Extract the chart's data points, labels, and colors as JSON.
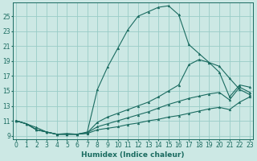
{
  "xlabel": "Humidex (Indice chaleur)",
  "bg_color": "#cce8e4",
  "grid_color": "#99ccc7",
  "line_color": "#1a6b60",
  "x_ticks": [
    0,
    1,
    2,
    3,
    4,
    5,
    6,
    7,
    8,
    9,
    10,
    11,
    12,
    13,
    14,
    15,
    16,
    17,
    18,
    19,
    20,
    21,
    22,
    23
  ],
  "y_ticks": [
    9,
    11,
    13,
    15,
    17,
    19,
    21,
    23,
    25
  ],
  "xlim": [
    -0.3,
    23.3
  ],
  "ylim": [
    8.5,
    26.8
  ],
  "tick_fontsize": 5.5,
  "series": {
    "main": {
      "x": [
        0,
        1,
        2,
        3,
        4,
        5,
        6,
        7,
        8,
        9,
        10,
        11,
        12,
        13,
        14,
        15,
        16,
        17,
        18,
        19,
        20,
        21,
        22,
        23
      ],
      "y": [
        11.0,
        10.6,
        10.1,
        9.5,
        9.2,
        9.3,
        9.2,
        9.5,
        15.2,
        18.2,
        20.7,
        23.2,
        25.0,
        25.6,
        26.2,
        26.4,
        25.2,
        21.2,
        20.0,
        18.8,
        18.3,
        16.7,
        15.2,
        14.5
      ]
    },
    "line2": {
      "x": [
        0,
        1,
        2,
        3,
        4,
        5,
        6,
        7,
        8,
        9,
        10,
        11,
        12,
        13,
        14,
        15,
        16,
        17,
        18,
        19,
        20,
        21,
        22,
        23
      ],
      "y": [
        11.0,
        10.6,
        9.8,
        9.5,
        9.2,
        9.2,
        9.2,
        9.4,
        10.8,
        11.5,
        12.0,
        12.5,
        13.0,
        13.5,
        14.2,
        15.0,
        15.8,
        18.5,
        19.2,
        18.8,
        17.5,
        14.2,
        15.8,
        15.5
      ]
    },
    "line3": {
      "x": [
        0,
        1,
        2,
        3,
        4,
        5,
        6,
        7,
        8,
        9,
        10,
        11,
        12,
        13,
        14,
        15,
        16,
        17,
        18,
        19,
        20,
        21,
        22,
        23
      ],
      "y": [
        11.0,
        10.6,
        9.8,
        9.5,
        9.2,
        9.2,
        9.2,
        9.4,
        10.2,
        10.6,
        11.0,
        11.4,
        11.8,
        12.2,
        12.7,
        13.2,
        13.6,
        14.0,
        14.3,
        14.6,
        14.8,
        13.8,
        15.5,
        14.8
      ]
    },
    "line4": {
      "x": [
        0,
        1,
        2,
        3,
        4,
        5,
        6,
        7,
        8,
        9,
        10,
        11,
        12,
        13,
        14,
        15,
        16,
        17,
        18,
        19,
        20,
        21,
        22,
        23
      ],
      "y": [
        11.0,
        10.6,
        9.8,
        9.5,
        9.2,
        9.2,
        9.2,
        9.3,
        9.8,
        10.0,
        10.2,
        10.5,
        10.7,
        11.0,
        11.2,
        11.5,
        11.7,
        12.0,
        12.3,
        12.6,
        12.8,
        12.5,
        13.5,
        14.2
      ]
    }
  }
}
